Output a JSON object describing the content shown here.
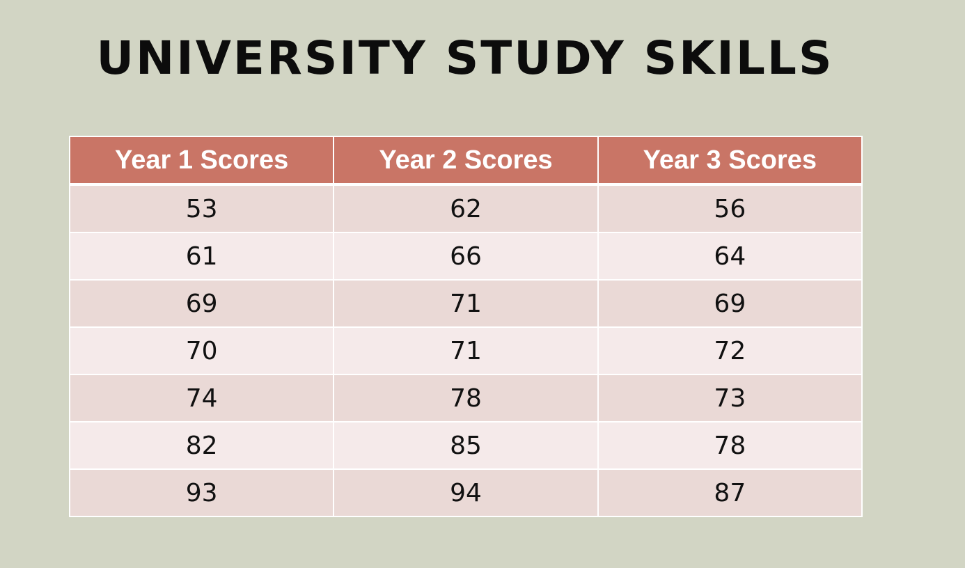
{
  "slide": {
    "title": "UNIVERSITY STUDY SKILLS"
  },
  "table": {
    "headers": [
      "Year 1 Scores",
      "Year 2 Scores",
      "Year 3 Scores"
    ],
    "rows": [
      [
        "53",
        "62",
        "56"
      ],
      [
        "61",
        "66",
        "64"
      ],
      [
        "69",
        "71",
        "69"
      ],
      [
        "70",
        "71",
        "72"
      ],
      [
        "74",
        "78",
        "73"
      ],
      [
        "82",
        "85",
        "78"
      ],
      [
        "93",
        "94",
        "87"
      ]
    ]
  },
  "colors": {
    "background": "#d2d5c4",
    "header_fill": "#c97566",
    "row_band_dark": "#ead9d6",
    "row_band_light": "#f5eaea",
    "title_text": "#0c0c0c"
  }
}
